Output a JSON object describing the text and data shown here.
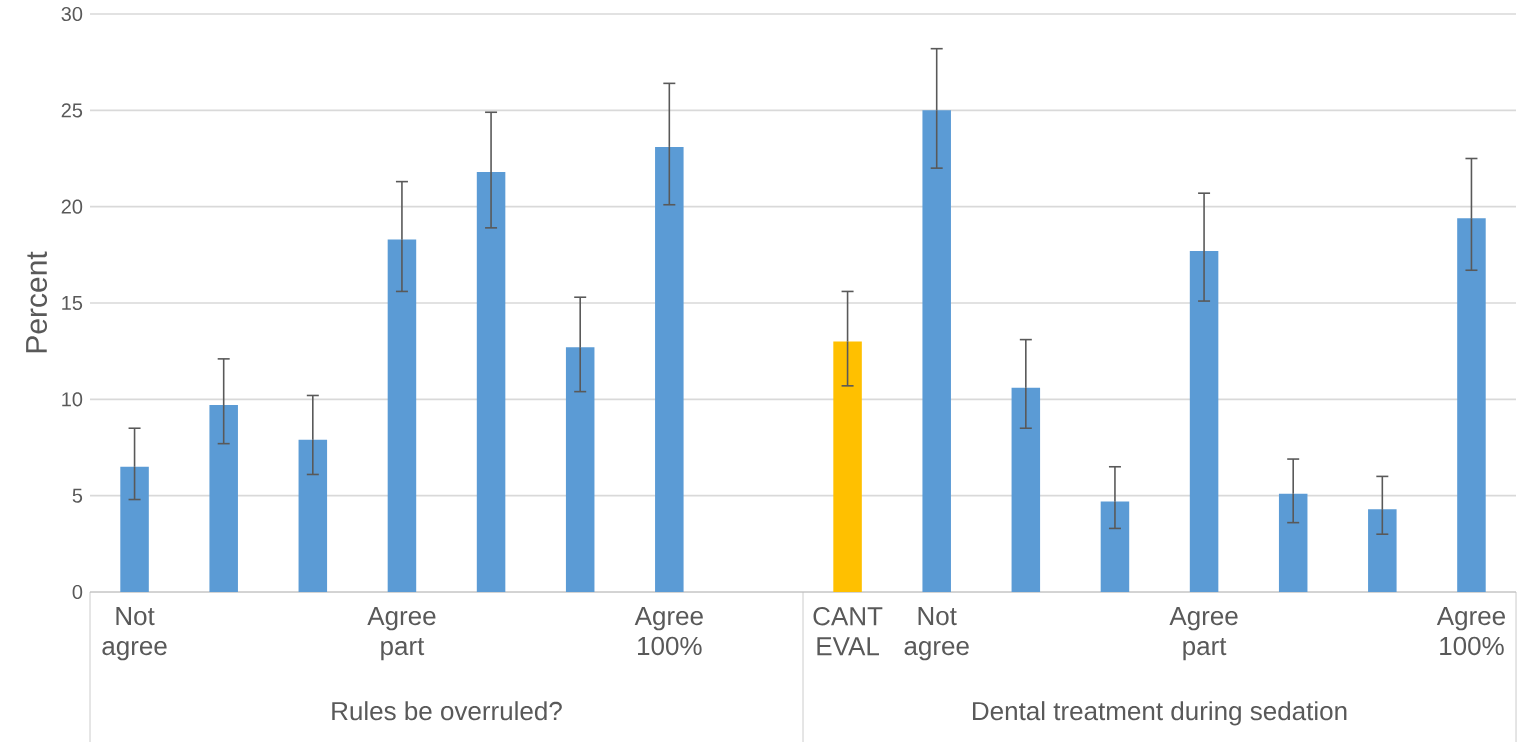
{
  "chart_data": {
    "type": "bar",
    "ylabel": "Percent",
    "categories": [
      "Not agree",
      null,
      null,
      "Agree part",
      null,
      null,
      "Agree 100%",
      null,
      "CANT EVAL",
      "Not agree",
      null,
      null,
      "Agree part",
      null,
      null,
      "Agree 100%"
    ],
    "values": [
      6.5,
      9.7,
      7.9,
      18.3,
      21.8,
      12.7,
      23.1,
      null,
      13.0,
      25.0,
      10.6,
      4.7,
      17.7,
      5.1,
      4.3,
      19.4
    ],
    "errors": [
      [
        4.8,
        8.5
      ],
      [
        7.7,
        12.1
      ],
      [
        6.1,
        10.2
      ],
      [
        15.6,
        21.3
      ],
      [
        18.9,
        24.9
      ],
      [
        10.4,
        15.3
      ],
      [
        20.1,
        26.4
      ],
      null,
      [
        10.7,
        15.6
      ],
      [
        22.0,
        28.2
      ],
      [
        8.5,
        13.1
      ],
      [
        3.3,
        6.5
      ],
      [
        15.1,
        20.7
      ],
      [
        3.6,
        6.9
      ],
      [
        3.0,
        6.0
      ],
      [
        16.7,
        22.5
      ]
    ],
    "colors": [
      "#5b9bd5",
      "#5b9bd5",
      "#5b9bd5",
      "#5b9bd5",
      "#5b9bd5",
      "#5b9bd5",
      "#5b9bd5",
      "#5b9bd5",
      "#ffc000",
      "#5b9bd5",
      "#5b9bd5",
      "#5b9bd5",
      "#5b9bd5",
      "#5b9bd5",
      "#5b9bd5",
      "#5b9bd5"
    ],
    "ylim": [
      0,
      30
    ],
    "yticks": [
      0,
      5,
      10,
      15,
      20,
      25,
      30
    ],
    "grid": "y",
    "annotations": [
      "Rules be overruled?",
      "Dental treatment during sedation"
    ]
  }
}
